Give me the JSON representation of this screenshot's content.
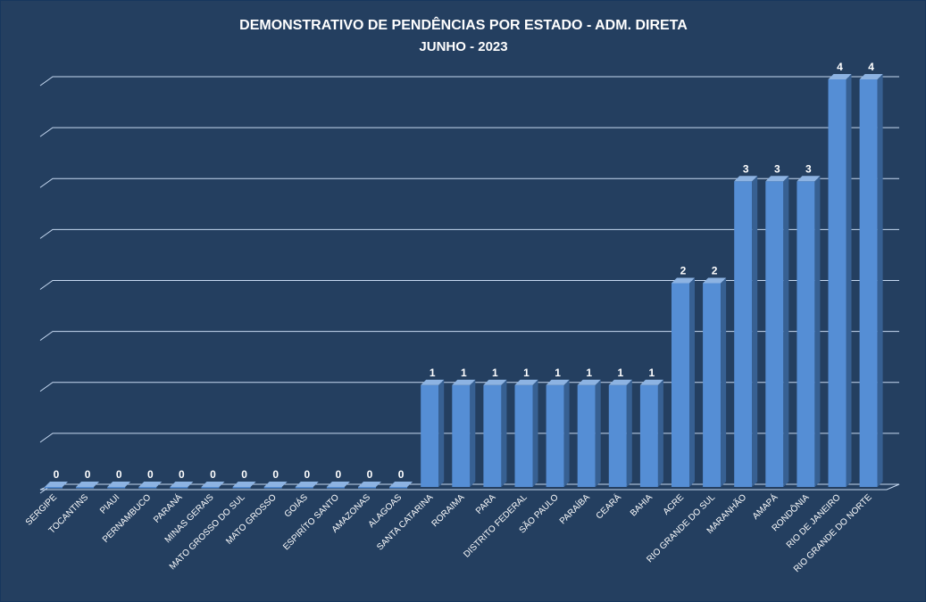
{
  "chart_data": {
    "type": "bar",
    "title": "DEMONSTRATIVO DE PENDÊNCIAS POR ESTADO - ADM. DIRETA",
    "subtitle": "JUNHO - 2023",
    "xlabel": "",
    "ylabel": "",
    "categories": [
      "SERGIPE",
      "TOCANTINS",
      "PIAUI",
      "PERNAMBUCO",
      "PARANÁ",
      "MINAS GERAIS",
      "MATO GROSSO DO SUL",
      "MATO GROSSO",
      "GOIÁS",
      "ESPIRÍTO SANTO",
      "AMAZONAS",
      "ALAGOAS",
      "SANTA CATARINA",
      "RORAIMA",
      "PARA",
      "DISTRITO FEDERAL",
      "SÃO PAULO",
      "PARAÍBA",
      "CEARÁ",
      "BAHIA",
      "ACRE",
      "RIO GRANDE DO SUL",
      "MARANHÃO",
      "AMAPÁ",
      "RONDÔNIA",
      "RIO DE JANEIRO",
      "RIO GRANDE DO NORTE"
    ],
    "values": [
      0,
      0,
      0,
      0,
      0,
      0,
      0,
      0,
      0,
      0,
      0,
      0,
      1,
      1,
      1,
      1,
      1,
      1,
      1,
      1,
      2,
      2,
      3,
      3,
      3,
      4,
      4
    ],
    "value_labels": [
      "0",
      "0",
      "0",
      "0",
      "0",
      "0",
      "0",
      "0",
      "0",
      "0",
      "0",
      "0",
      "1",
      "1",
      "1",
      "1",
      "1",
      "1",
      "1",
      "1",
      "2",
      "2",
      "3",
      "3",
      "3",
      "4",
      "4"
    ],
    "ylim": [
      0,
      4
    ],
    "grid": true,
    "grid_step": 0.5,
    "legend": "none",
    "colors": {
      "background": "#243f60",
      "bar_front": "#558ed5",
      "bar_top": "#8db3e2",
      "bar_side": "#376092",
      "grid": "#c6d9f1",
      "text": "#ffffff"
    }
  }
}
